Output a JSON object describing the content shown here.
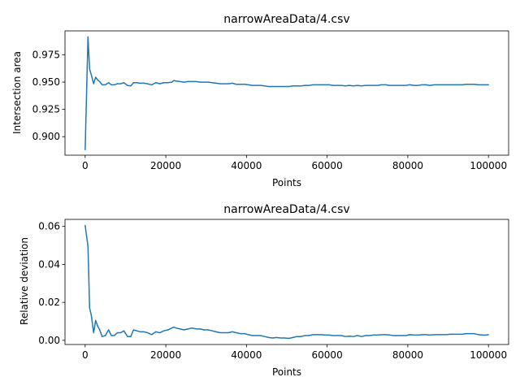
{
  "chart_data": [
    {
      "type": "line",
      "title": "narrowAreaData/4.csv",
      "xlabel": "Points",
      "ylabel": "Intersection area",
      "xlim": [
        -5000,
        105000
      ],
      "ylim": [
        0.883,
        0.997
      ],
      "xticks": [
        0,
        20000,
        40000,
        60000,
        80000,
        100000
      ],
      "xtick_labels": [
        "0",
        "20000",
        "40000",
        "60000",
        "80000",
        "100000"
      ],
      "yticks": [
        0.9,
        0.925,
        0.95,
        0.975
      ],
      "ytick_labels": [
        "0.900",
        "0.925",
        "0.950",
        "0.975"
      ],
      "grid": false,
      "color": "#1f77b4",
      "series": [
        {
          "x": [
            0,
            700,
            1100,
            1500,
            2100,
            2600,
            3100,
            3600,
            4200,
            5000,
            5800,
            6500,
            7200,
            8000,
            8800,
            9600,
            10500,
            11300,
            12000,
            12800,
            13600,
            14500,
            15500,
            16500,
            17500,
            18500,
            19500,
            20500,
            21500,
            22000,
            22500,
            23500,
            24500,
            25500,
            26500,
            27500,
            28500,
            29500,
            30500,
            31500,
            32500,
            33500,
            34500,
            35500,
            36500,
            37500,
            38500,
            39500,
            40500,
            41500,
            42500,
            43500,
            44500,
            45500,
            46500,
            47500,
            48500,
            49500,
            50500,
            51500,
            52500,
            53500,
            54500,
            55500,
            56500,
            57500,
            58500,
            59500,
            60500,
            61500,
            62500,
            63500,
            64500,
            65500,
            66500,
            67500,
            68500,
            69500,
            70500,
            71500,
            72500,
            73500,
            74500,
            75500,
            76500,
            77500,
            78500,
            79500,
            80500,
            81500,
            82500,
            83500,
            84500,
            85500,
            86500,
            87500,
            88500,
            89500,
            90500,
            91500,
            92500,
            93500,
            94500,
            95500,
            96500,
            97500,
            98500,
            99500,
            100000
          ],
          "y": [
            0.888,
            0.9915,
            0.962,
            0.957,
            0.9485,
            0.9545,
            0.952,
            0.9505,
            0.9475,
            0.9475,
            0.9495,
            0.9475,
            0.9475,
            0.9485,
            0.9485,
            0.9495,
            0.947,
            0.9465,
            0.9495,
            0.9495,
            0.949,
            0.949,
            0.9485,
            0.9475,
            0.9495,
            0.9485,
            0.9495,
            0.9495,
            0.95,
            0.9515,
            0.951,
            0.9505,
            0.95,
            0.9505,
            0.9505,
            0.9505,
            0.95,
            0.95,
            0.95,
            0.9495,
            0.949,
            0.9485,
            0.9485,
            0.9485,
            0.949,
            0.948,
            0.948,
            0.948,
            0.9475,
            0.947,
            0.947,
            0.947,
            0.9465,
            0.946,
            0.946,
            0.946,
            0.946,
            0.946,
            0.946,
            0.9465,
            0.9465,
            0.9465,
            0.947,
            0.947,
            0.9475,
            0.9475,
            0.9475,
            0.9475,
            0.9475,
            0.947,
            0.947,
            0.947,
            0.9465,
            0.947,
            0.9465,
            0.947,
            0.9465,
            0.947,
            0.947,
            0.947,
            0.947,
            0.9475,
            0.9475,
            0.947,
            0.947,
            0.947,
            0.947,
            0.947,
            0.9475,
            0.947,
            0.947,
            0.9475,
            0.9475,
            0.947,
            0.9475,
            0.9475,
            0.9475,
            0.9475,
            0.9475,
            0.9475,
            0.9475,
            0.9475,
            0.948,
            0.948,
            0.948,
            0.9475,
            0.9475,
            0.9475,
            0.9475
          ]
        }
      ]
    },
    {
      "type": "line",
      "title": "narrowAreaData/4.csv",
      "xlabel": "Points",
      "ylabel": "Relative deviation",
      "xlim": [
        -5000,
        105000
      ],
      "ylim": [
        -0.0022,
        0.0637
      ],
      "xticks": [
        0,
        20000,
        40000,
        60000,
        80000,
        100000
      ],
      "xtick_labels": [
        "0",
        "20000",
        "40000",
        "60000",
        "80000",
        "100000"
      ],
      "yticks": [
        0.0,
        0.02,
        0.04,
        0.06
      ],
      "ytick_labels": [
        "0.00",
        "0.02",
        "0.04",
        "0.06"
      ],
      "grid": false,
      "color": "#1f77b4",
      "series": [
        {
          "x": [
            0,
            700,
            1100,
            1500,
            2100,
            2600,
            3100,
            3600,
            4200,
            5000,
            5800,
            6500,
            7200,
            8000,
            8800,
            9600,
            10500,
            11300,
            12000,
            12800,
            13600,
            14500,
            15500,
            16500,
            17500,
            18500,
            19500,
            20500,
            21500,
            22000,
            22500,
            23500,
            24500,
            25500,
            26500,
            27500,
            28500,
            29500,
            30500,
            31500,
            32500,
            33500,
            34500,
            35500,
            36500,
            37500,
            38500,
            39500,
            40500,
            41500,
            42500,
            43500,
            44500,
            45500,
            46500,
            47500,
            48500,
            49500,
            50500,
            51500,
            52500,
            53500,
            54500,
            55500,
            56500,
            57500,
            58500,
            59500,
            60500,
            61500,
            62500,
            63500,
            64500,
            65500,
            66500,
            67500,
            68500,
            69500,
            70500,
            71500,
            72500,
            73500,
            74500,
            75500,
            76500,
            77500,
            78500,
            79500,
            80500,
            81500,
            82500,
            83500,
            84500,
            85500,
            86500,
            87500,
            88500,
            89500,
            90500,
            91500,
            92500,
            93500,
            94500,
            95500,
            96500,
            97500,
            98500,
            99500,
            100000
          ],
          "y": [
            0.0605,
            0.0495,
            0.017,
            0.0135,
            0.004,
            0.0105,
            0.0075,
            0.0055,
            0.002,
            0.0025,
            0.0055,
            0.0025,
            0.0025,
            0.004,
            0.004,
            0.005,
            0.002,
            0.002,
            0.0055,
            0.005,
            0.0045,
            0.0045,
            0.004,
            0.003,
            0.0045,
            0.004,
            0.005,
            0.0055,
            0.0065,
            0.007,
            0.0065,
            0.006,
            0.0055,
            0.006,
            0.0065,
            0.006,
            0.006,
            0.0055,
            0.0055,
            0.005,
            0.0045,
            0.004,
            0.004,
            0.004,
            0.0045,
            0.004,
            0.0035,
            0.0035,
            0.003,
            0.0025,
            0.0025,
            0.0025,
            0.002,
            0.0015,
            0.0012,
            0.0015,
            0.0012,
            0.0012,
            0.001,
            0.0015,
            0.002,
            0.002,
            0.0025,
            0.0025,
            0.003,
            0.003,
            0.003,
            0.0028,
            0.0028,
            0.0025,
            0.0025,
            0.0025,
            0.002,
            0.0022,
            0.002,
            0.0025,
            0.002,
            0.0025,
            0.0025,
            0.0028,
            0.0028,
            0.003,
            0.003,
            0.0028,
            0.0025,
            0.0025,
            0.0025,
            0.0025,
            0.003,
            0.0028,
            0.0028,
            0.003,
            0.003,
            0.0028,
            0.003,
            0.003,
            0.003,
            0.003,
            0.0032,
            0.0032,
            0.0032,
            0.0032,
            0.0035,
            0.0035,
            0.0035,
            0.003,
            0.0028,
            0.0028,
            0.003
          ]
        }
      ]
    }
  ]
}
